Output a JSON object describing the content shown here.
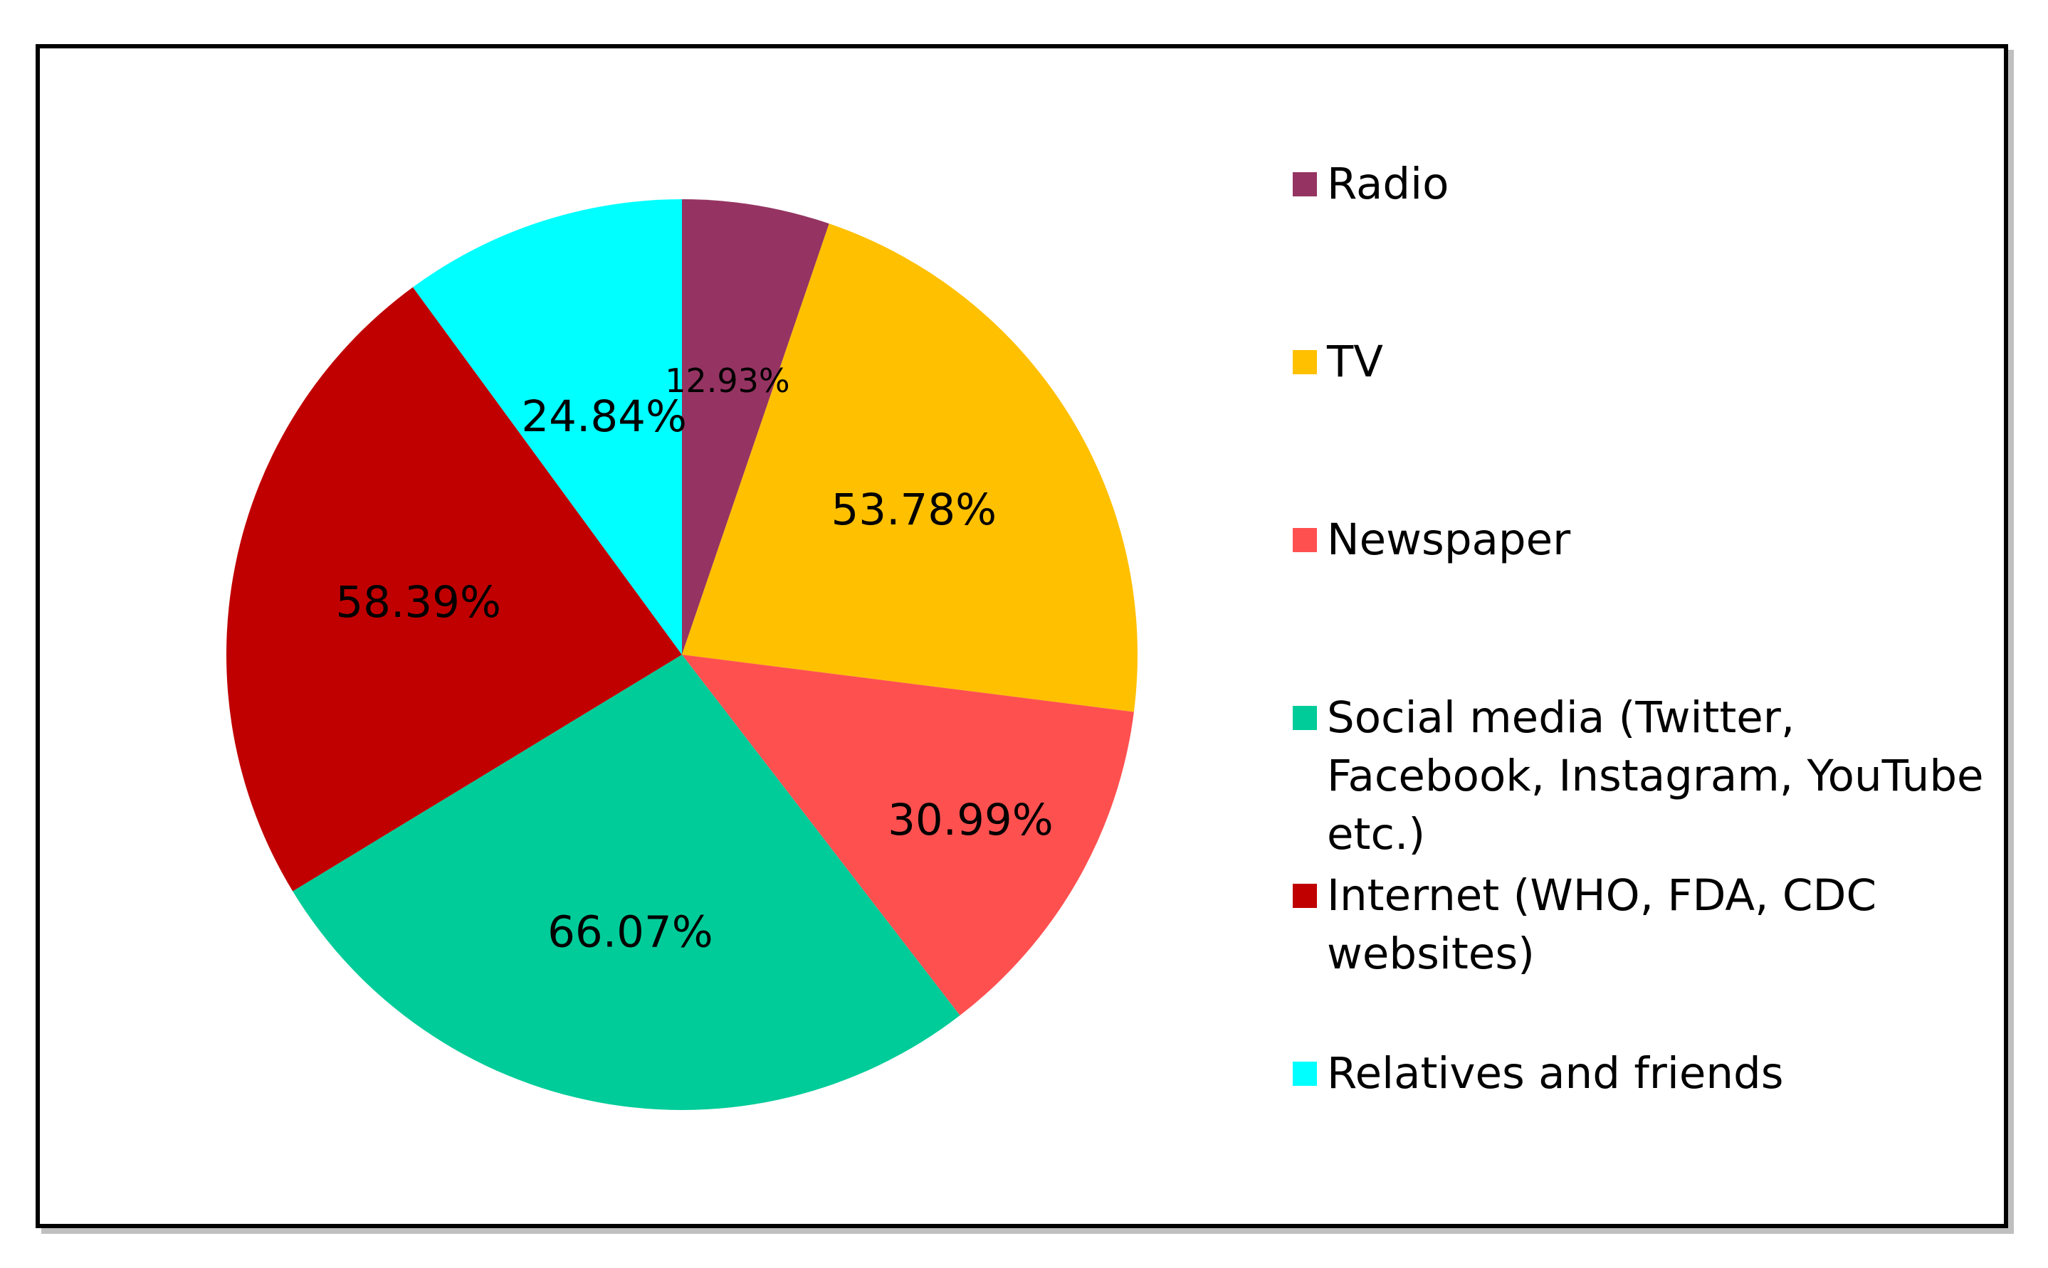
{
  "chart_data": {
    "type": "pie",
    "title": "",
    "legend_position": "right",
    "slices": [
      {
        "name": "Radio",
        "value": 12.93,
        "label": "12.93%",
        "color": "#953462"
      },
      {
        "name": "TV",
        "value": 53.78,
        "label": "53.78%",
        "color": "#FFC000"
      },
      {
        "name": "Newspaper",
        "value": 30.99,
        "label": "30.99%",
        "color": "#FF5050"
      },
      {
        "name": "Social media (Twitter, Facebook, Instagram, YouTube etc.)",
        "value": 66.07,
        "label": "66.07%",
        "color": "#00CC99"
      },
      {
        "name": "Internet (WHO, FDA, CDC websites)",
        "value": 58.39,
        "label": "58.39%",
        "color": "#C00000"
      },
      {
        "name": "Relatives and friends",
        "value": 24.84,
        "label": "24.84%",
        "color": "#00FFFF"
      }
    ]
  }
}
